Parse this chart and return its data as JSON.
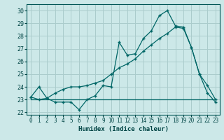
{
  "xlabel": "Humidex (Indice chaleur)",
  "bg_color": "#cce8e8",
  "grid_color": "#aacccc",
  "line_color": "#006666",
  "xlim": [
    -0.5,
    23.5
  ],
  "ylim": [
    21.8,
    30.5
  ],
  "xticks": [
    0,
    1,
    2,
    3,
    4,
    5,
    6,
    7,
    8,
    9,
    10,
    11,
    12,
    13,
    14,
    15,
    16,
    17,
    18,
    19,
    20,
    21,
    22,
    23
  ],
  "yticks": [
    22,
    23,
    24,
    25,
    26,
    27,
    28,
    29,
    30
  ],
  "line1_x": [
    0,
    1,
    2,
    3,
    4,
    5,
    6,
    7,
    8,
    9,
    10,
    11,
    12,
    13,
    14,
    15,
    16,
    17,
    18,
    19,
    20,
    21,
    22,
    23
  ],
  "line1_y": [
    23.0,
    23.0,
    23.0,
    23.0,
    23.0,
    23.0,
    23.0,
    23.0,
    23.0,
    23.0,
    23.0,
    23.0,
    23.0,
    23.0,
    23.0,
    23.0,
    23.0,
    23.0,
    23.0,
    23.0,
    23.0,
    23.0,
    23.0,
    23.0
  ],
  "line2_x": [
    0,
    1,
    2,
    3,
    4,
    5,
    6,
    7,
    8,
    9,
    10,
    11,
    12,
    13,
    14,
    15,
    16,
    17,
    18,
    19,
    20,
    21,
    22,
    23
  ],
  "line2_y": [
    23.2,
    24.0,
    23.1,
    22.8,
    22.8,
    22.8,
    22.2,
    23.0,
    23.3,
    24.1,
    24.0,
    27.5,
    26.5,
    26.6,
    27.8,
    28.4,
    29.6,
    30.0,
    28.8,
    28.7,
    27.1,
    25.0,
    24.1,
    23.0
  ],
  "line3_x": [
    0,
    1,
    2,
    3,
    4,
    5,
    6,
    7,
    8,
    9,
    10,
    11,
    12,
    13,
    14,
    15,
    16,
    17,
    18,
    19,
    20,
    21,
    22,
    23
  ],
  "line3_y": [
    23.2,
    23.0,
    23.1,
    23.5,
    23.8,
    24.0,
    24.0,
    24.1,
    24.3,
    24.5,
    25.0,
    25.5,
    25.8,
    26.2,
    26.8,
    27.3,
    27.8,
    28.2,
    28.7,
    28.6,
    27.1,
    25.0,
    23.5,
    22.8
  ]
}
